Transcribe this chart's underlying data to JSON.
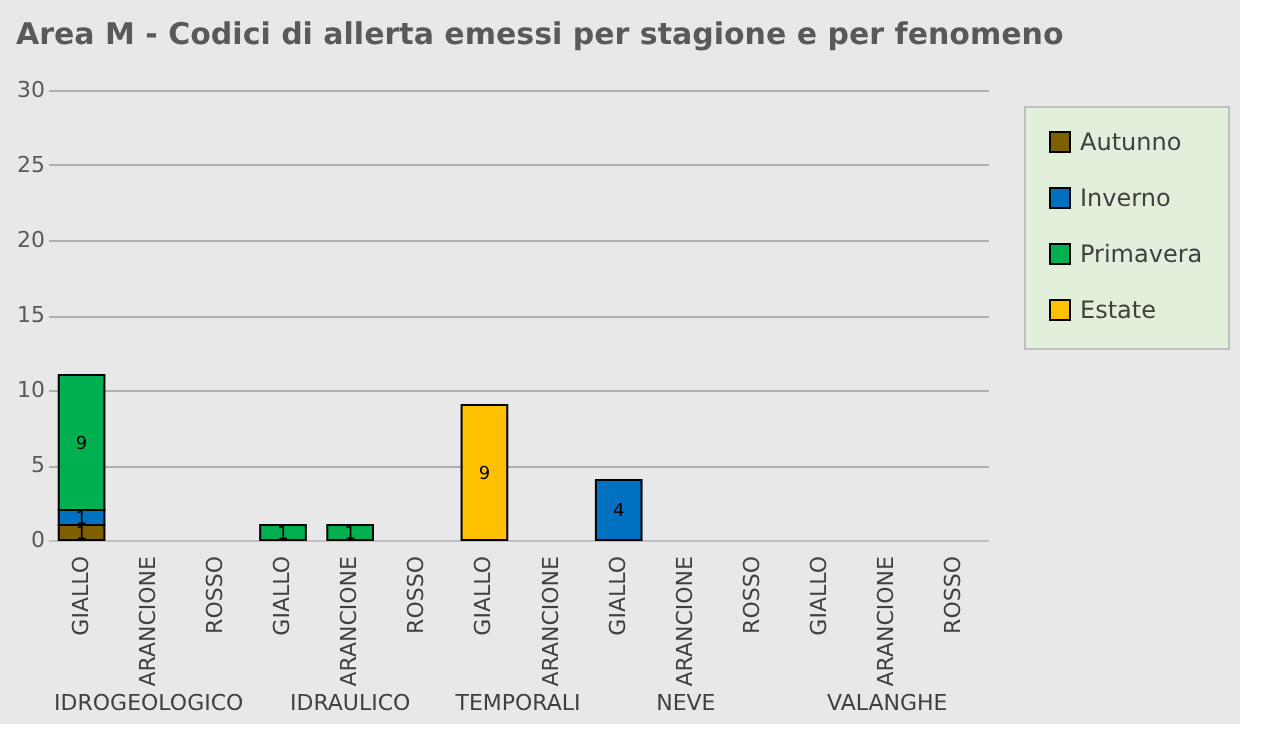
{
  "chart_data": {
    "type": "bar",
    "title": "Area M - Codici di allerta emessi per stagione e per fenomeno",
    "categories": [
      "GIALLO",
      "ARANCIONE",
      "ROSSO",
      "GIALLO",
      "ARANCIONE",
      "ROSSO",
      "GIALLO",
      "ARANCIONE",
      "GIALLO",
      "ARANCIONE",
      "ROSSO",
      "GIALLO",
      "ARANCIONE",
      "ROSSO"
    ],
    "series": [
      {
        "name": "Autunno",
        "color": "#7f6000",
        "values": [
          1,
          null,
          null,
          null,
          null,
          null,
          null,
          null,
          null,
          null,
          null,
          null,
          null,
          null
        ]
      },
      {
        "name": "Inverno",
        "color": "#0070c0",
        "values": [
          1,
          null,
          null,
          null,
          null,
          null,
          null,
          null,
          4,
          null,
          null,
          null,
          null,
          null
        ]
      },
      {
        "name": "Primavera",
        "color": "#00b050",
        "values": [
          9,
          null,
          null,
          1,
          1,
          null,
          null,
          null,
          null,
          null,
          null,
          null,
          null,
          null
        ]
      },
      {
        "name": "Estate",
        "color": "#ffc000",
        "values": [
          null,
          null,
          null,
          null,
          null,
          null,
          9,
          null,
          null,
          null,
          null,
          null,
          null,
          null
        ]
      }
    ],
    "annotations": [
      "IDROGEOLOGICO",
      "IDRAULICO",
      "TEMPORALI",
      "NEVE",
      "VALANGHE"
    ],
    "stacked": true,
    "data_labels": true,
    "ylim": [
      0,
      30
    ],
    "yticks": [
      0,
      5,
      10,
      15,
      20,
      25,
      30
    ],
    "grid": "y",
    "legend": "top right"
  }
}
